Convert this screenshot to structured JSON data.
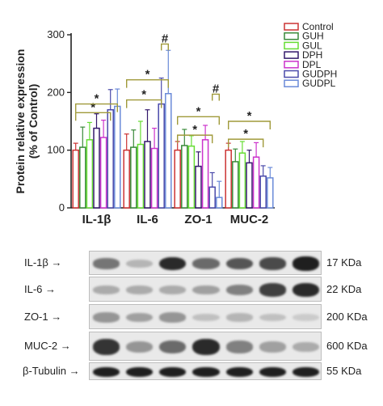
{
  "chart_data": {
    "type": "bar",
    "ylabel": "Protein relative expression\n(% of Control)",
    "ylim": [
      0,
      300
    ],
    "yticks": [
      0,
      100,
      200,
      300
    ],
    "categories": [
      "IL-1β",
      "IL-6",
      "ZO-1",
      "MUC-2"
    ],
    "series": [
      {
        "name": "Control",
        "color": "#cc3333",
        "values": [
          100,
          100,
          100,
          100
        ],
        "errors": [
          12,
          28,
          15,
          12
        ]
      },
      {
        "name": "GUH",
        "color": "#3a8a3a",
        "values": [
          105,
          105,
          108,
          80
        ],
        "errors": [
          35,
          30,
          28,
          22
        ]
      },
      {
        "name": "GUL",
        "color": "#66dd33",
        "values": [
          118,
          110,
          107,
          95
        ],
        "errors": [
          30,
          40,
          18,
          20
        ]
      },
      {
        "name": "DPH",
        "color": "#33186b",
        "values": [
          138,
          115,
          72,
          78
        ],
        "errors": [
          25,
          55,
          25,
          22
        ]
      },
      {
        "name": "DPL",
        "color": "#cc33cc",
        "values": [
          122,
          103,
          118,
          88
        ],
        "errors": [
          30,
          35,
          25,
          25
        ]
      },
      {
        "name": "GUDPH",
        "color": "#4a4aaa",
        "values": [
          170,
          180,
          36,
          55
        ],
        "errors": [
          35,
          45,
          25,
          18
        ]
      },
      {
        "name": "GUDPL",
        "color": "#6a8ad8",
        "values": [
          176,
          198,
          18,
          52
        ],
        "errors": [
          30,
          75,
          28,
          18
        ]
      }
    ],
    "legend_position": "top-right",
    "significance": [
      {
        "category": "IL-1β",
        "from": "Control",
        "to": "GUDPH",
        "mark": "*"
      },
      {
        "category": "IL-1β",
        "from": "Control",
        "to": "GUDPL",
        "mark": "*"
      },
      {
        "category": "IL-6",
        "from": "Control",
        "to": "GUDPH",
        "mark": "*"
      },
      {
        "category": "IL-6",
        "from": "Control",
        "to": "GUDPL",
        "mark": "*"
      },
      {
        "category": "IL-6",
        "from": "GUDPH",
        "to": "GUDPL",
        "mark": "#"
      },
      {
        "category": "ZO-1",
        "from": "Control",
        "to": "GUDPH",
        "mark": "*"
      },
      {
        "category": "ZO-1",
        "from": "Control",
        "to": "GUDPL",
        "mark": "*"
      },
      {
        "category": "ZO-1",
        "from": "GUDPH",
        "to": "GUDPL",
        "mark": "#"
      },
      {
        "category": "MUC-2",
        "from": "Control",
        "to": "GUDPH",
        "mark": "*"
      },
      {
        "category": "MUC-2",
        "from": "Control",
        "to": "GUDPL",
        "mark": "*"
      }
    ],
    "sig_color": "#a09a3a"
  },
  "blot": {
    "rows": [
      {
        "protein": "IL-1β",
        "mw": "17 KDa",
        "intensities": [
          0.55,
          0.25,
          0.9,
          0.6,
          0.7,
          0.75,
          0.95
        ]
      },
      {
        "protein": "IL-6",
        "mw": "22 KDa",
        "intensities": [
          0.3,
          0.3,
          0.3,
          0.35,
          0.5,
          0.8,
          0.9
        ]
      },
      {
        "protein": "ZO-1",
        "mw": "200 KDa",
        "intensities": [
          0.4,
          0.35,
          0.4,
          0.2,
          0.25,
          0.2,
          0.15
        ]
      },
      {
        "protein": "MUC-2",
        "mw": "600 KDa",
        "intensities": [
          0.85,
          0.4,
          0.6,
          0.9,
          0.5,
          0.35,
          0.3
        ]
      },
      {
        "protein": "β-Tubulin",
        "mw": "55 KDa",
        "intensities": [
          0.95,
          0.95,
          0.95,
          0.95,
          0.95,
          0.95,
          0.95
        ]
      }
    ],
    "arrow": "→"
  }
}
